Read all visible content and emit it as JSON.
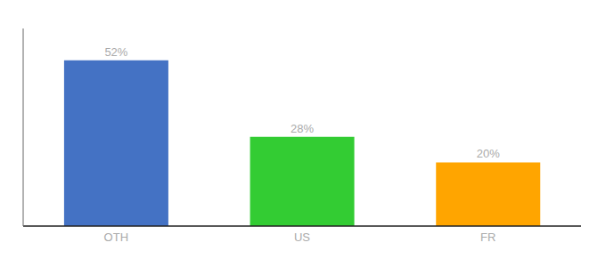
{
  "chart_data": {
    "type": "bar",
    "categories": [
      "OTH",
      "US",
      "FR"
    ],
    "values": [
      52,
      28,
      20
    ],
    "value_labels": [
      "52%",
      "28%",
      "20%"
    ],
    "colors": [
      "#4472C4",
      "#33CC33",
      "#FFA500"
    ],
    "ylim": [
      0,
      62
    ],
    "data_labels": true,
    "tick_labels": "x",
    "grid": false
  }
}
